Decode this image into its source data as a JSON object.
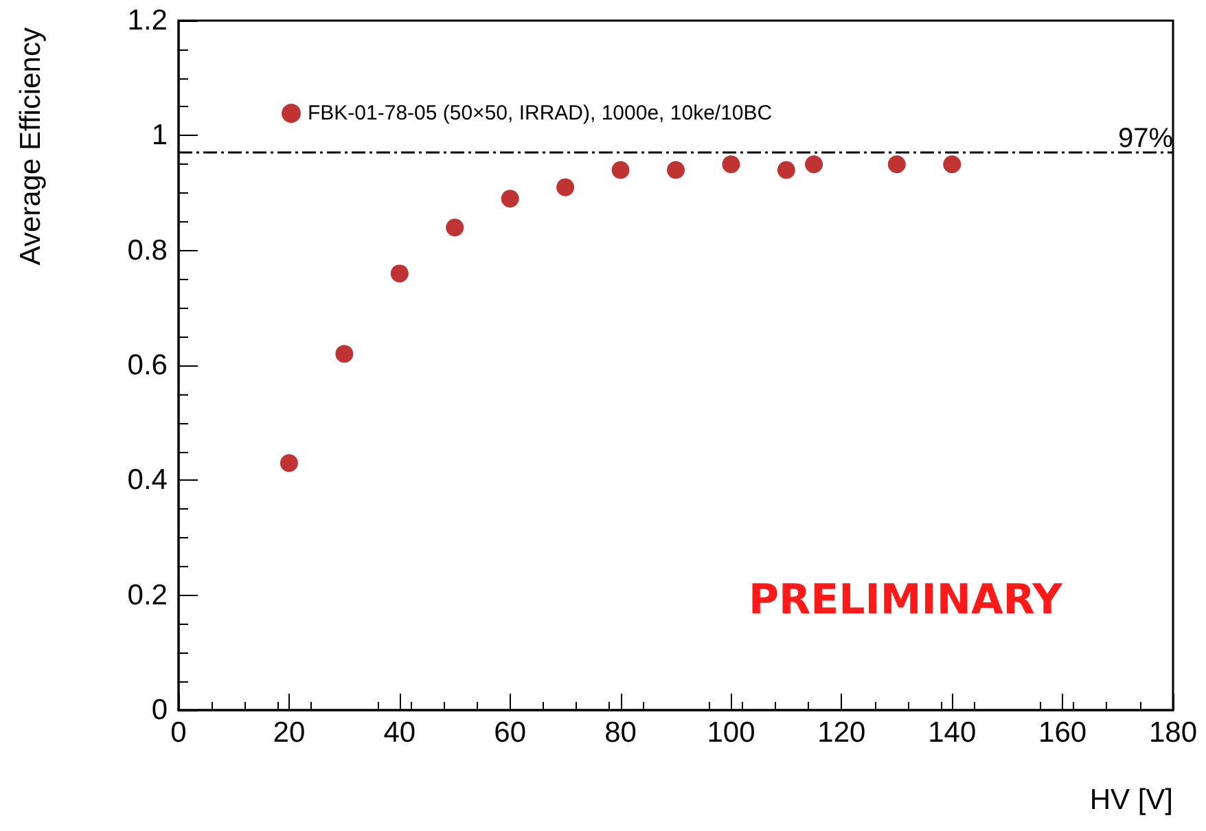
{
  "chart_data": {
    "type": "scatter",
    "xlabel": "HV [V]",
    "ylabel": "Average Efficiency",
    "x": [
      20,
      30,
      40,
      50,
      60,
      70,
      80,
      90,
      100,
      110,
      115,
      130,
      140
    ],
    "series": [
      {
        "name": "FBK-01-78-05 (50×50, IRRAD), 1000e, 10ke/10BC",
        "color": "#b00000",
        "values": [
          0.43,
          0.62,
          0.76,
          0.84,
          0.89,
          0.91,
          0.94,
          0.94,
          0.95,
          0.94,
          0.95,
          0.95,
          0.95
        ]
      }
    ],
    "xlim": [
      0,
      180
    ],
    "xticks": [
      0,
      20,
      40,
      60,
      80,
      100,
      120,
      140,
      160,
      180
    ],
    "ylim": [
      0,
      1.2
    ],
    "yticks": [
      0,
      0.2,
      0.4,
      0.6,
      0.8,
      1,
      1.2
    ],
    "ref_lines": [
      {
        "axis": "y",
        "value": 0.97,
        "label": "97%",
        "color": "#000000",
        "line_style": "dashed"
      }
    ],
    "annotations": [
      "PRELIMINARY"
    ],
    "marker": "circle",
    "grid": false,
    "legend": "top"
  }
}
